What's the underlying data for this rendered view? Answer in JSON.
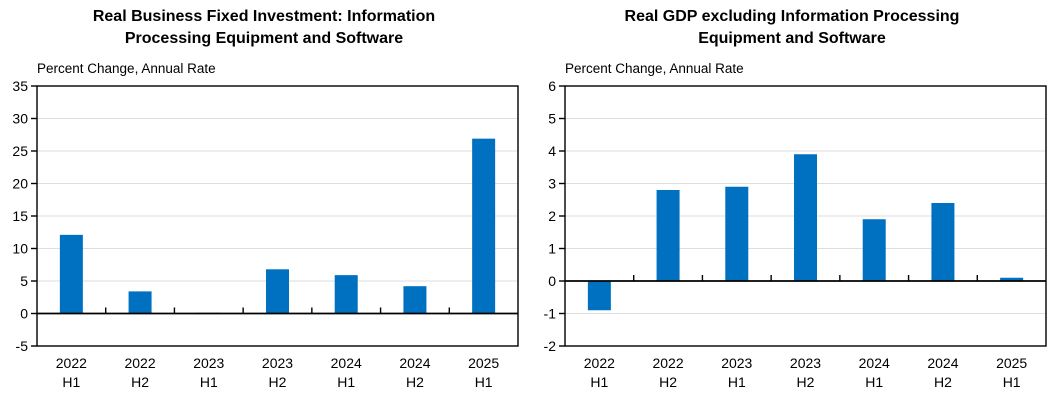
{
  "chart_data": [
    {
      "type": "bar",
      "title": "Real Business Fixed Investment: Information Processing Equipment and Software",
      "ylabel": "Percent Change, Annual Rate",
      "xlabel": "",
      "categories": [
        [
          "2022",
          "H1"
        ],
        [
          "2022",
          "H2"
        ],
        [
          "2023",
          "H1"
        ],
        [
          "2023",
          "H2"
        ],
        [
          "2024",
          "H1"
        ],
        [
          "2024",
          "H2"
        ],
        [
          "2025",
          "H1"
        ]
      ],
      "values": [
        12.1,
        3.4,
        0.1,
        6.8,
        5.9,
        4.2,
        26.9
      ],
      "ylim": [
        -5,
        35
      ],
      "ytick_interval": 5,
      "ytick_labels": [
        "35",
        "30",
        "25",
        "20",
        "15",
        "10",
        "5",
        "0",
        "-5"
      ],
      "bar_color": "#0070C0",
      "grid": true,
      "gridline_color": "#dedede",
      "axis_color": "#000000",
      "legend": null
    },
    {
      "type": "bar",
      "title": "Real GDP excluding Information Processing Equipment and Software",
      "ylabel": "Percent Change, Annual Rate",
      "xlabel": "",
      "categories": [
        [
          "2022",
          "H1"
        ],
        [
          "2022",
          "H2"
        ],
        [
          "2023",
          "H1"
        ],
        [
          "2023",
          "H2"
        ],
        [
          "2024",
          "H1"
        ],
        [
          "2024",
          "H2"
        ],
        [
          "2025",
          "H1"
        ]
      ],
      "values": [
        -0.9,
        2.8,
        2.9,
        3.9,
        1.9,
        2.4,
        0.1
      ],
      "ylim": [
        -2,
        6
      ],
      "ytick_interval": 1,
      "ytick_labels": [
        "6",
        "5",
        "4",
        "3",
        "2",
        "1",
        "0",
        "-1",
        "-2"
      ],
      "bar_color": "#0070C0",
      "grid": true,
      "gridline_color": "#dedede",
      "axis_color": "#000000",
      "legend": null
    }
  ]
}
